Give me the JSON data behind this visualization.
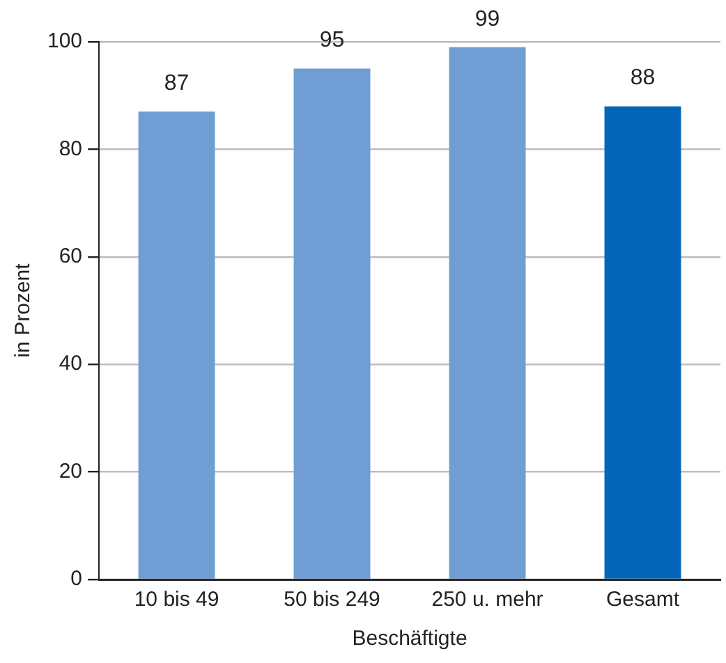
{
  "chart_data": {
    "type": "bar",
    "xlabel": "Beschäftigte",
    "ylabel": "in Prozent",
    "categories": [
      "10 bis 49",
      "50 bis 249",
      "250 u. mehr",
      "Gesamt"
    ],
    "values": [
      87,
      95,
      99,
      88
    ],
    "colors": [
      "#709dd3",
      "#709dd3",
      "#709dd3",
      "#0466b8"
    ],
    "ylim": [
      0,
      100
    ],
    "yticks": [
      0,
      20,
      40,
      60,
      80,
      100
    ],
    "grid": "y",
    "data_labels": true
  }
}
